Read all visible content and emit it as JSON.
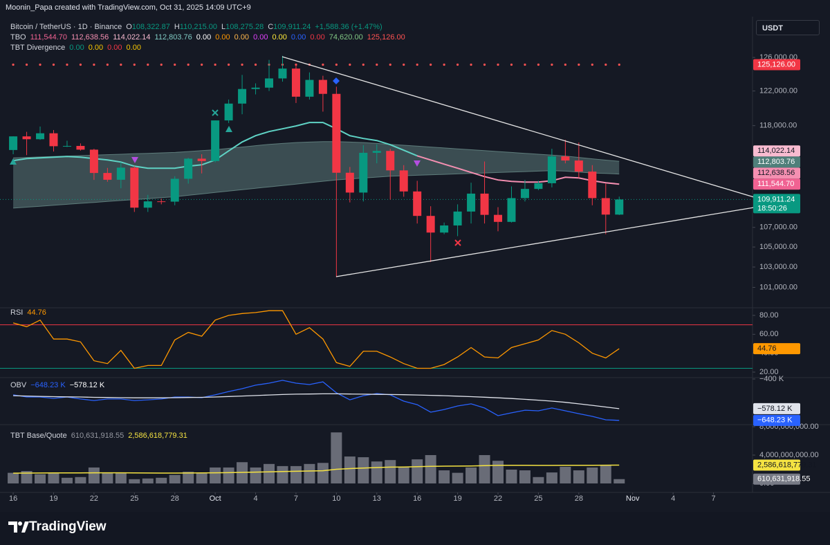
{
  "header": {
    "credit": "Moonin_Papa created with TradingView.com, Oct 31, 2025 14:09 UTC+9",
    "currency": "USDT",
    "logo": "TradingView"
  },
  "chart_data": [
    {
      "type": "candlestick",
      "title": "Bitcoin / TetherUS · 1D · Binance",
      "ohlc_legend": [
        {
          "key": "O",
          "label": "108,322.87"
        },
        {
          "key": "H",
          "label": "110,215.00"
        },
        {
          "key": "L",
          "label": "108,275.28"
        },
        {
          "key": "C",
          "label": "109,911.24"
        }
      ],
      "change": "+1,588.36 (+1.47%)",
      "countdown": "18:50:26",
      "open": [
        115268,
        116788,
        116468,
        117137,
        115688,
        115721,
        115306,
        112748,
        112014,
        113328,
        109049,
        109712,
        109681,
        112122,
        114311,
        114048,
        118594,
        120529,
        122232,
        122391,
        123482,
        124658,
        121332,
        123306,
        121662,
        112774,
        110644,
        114958,
        115166,
        113029,
        110763,
        108187,
        106468,
        107198,
        108642,
        110532,
        108297,
        107568,
        110055,
        111033,
        111641,
        114559,
        114107,
        112898,
        110055,
        108322.87
      ],
      "high": [
        116800,
        117300,
        117900,
        117500,
        116300,
        116000,
        115400,
        113300,
        113900,
        113500,
        110400,
        110000,
        112400,
        114400,
        114800,
        118600,
        121000,
        123900,
        122900,
        125700,
        126200,
        125100,
        124200,
        123800,
        122500,
        113400,
        115800,
        115900,
        115400,
        113600,
        111900,
        109200,
        107500,
        109400,
        111700,
        114000,
        109100,
        111300,
        112000,
        111900,
        115400,
        116400,
        116100,
        113600,
        111600,
        110215
      ],
      "low": [
        114800,
        114700,
        116400,
        115100,
        115600,
        115200,
        112000,
        111800,
        111100,
        108600,
        108600,
        109400,
        109300,
        111600,
        112700,
        113900,
        118300,
        119300,
        121600,
        122000,
        123100,
        120600,
        121000,
        119600,
        102000,
        109600,
        109700,
        113800,
        109900,
        110200,
        107400,
        103500,
        106300,
        106100,
        107400,
        107400,
        106600,
        107500,
        109700,
        110900,
        111200,
        113800,
        112200,
        109300,
        106300,
        108275.28
      ],
      "close": [
        116788,
        116468,
        117137,
        115688,
        115721,
        115306,
        112748,
        112014,
        113328,
        109049,
        109712,
        109681,
        112122,
        114311,
        114048,
        118594,
        120529,
        122232,
        122391,
        123482,
        124658,
        121332,
        123306,
        121662,
        112774,
        110644,
        114958,
        115166,
        113029,
        110763,
        108187,
        106468,
        107198,
        108642,
        110532,
        108297,
        107568,
        110055,
        111033,
        111641,
        114559,
        114107,
        112898,
        110055,
        108322.87,
        109911.24
      ],
      "up_color": "#089981",
      "down_color": "#f23645",
      "log_scale": true,
      "ylim": [
        99170,
        130700
      ],
      "yticks": [
        {
          "value": 126000,
          "label": "126,000.00"
        },
        {
          "value": 122000,
          "label": "122,000.00"
        },
        {
          "value": 118000,
          "label": "118,000.00"
        },
        {
          "value": 107000,
          "label": "107,000.00"
        },
        {
          "value": 105000,
          "label": "105,000.00"
        },
        {
          "value": 103000,
          "label": "103,000.00"
        },
        {
          "value": 101000,
          "label": "101,000.00"
        }
      ],
      "xlim": [
        -0.98,
        54.9
      ],
      "xticks": [
        {
          "value": 0,
          "label": "16"
        },
        {
          "value": 3,
          "label": "19"
        },
        {
          "value": 6,
          "label": "22"
        },
        {
          "value": 9,
          "label": "25"
        },
        {
          "value": 12,
          "label": "28"
        },
        {
          "value": 15,
          "label": "Oct"
        },
        {
          "value": 18,
          "label": "4"
        },
        {
          "value": 21,
          "label": "7"
        },
        {
          "value": 24,
          "label": "10"
        },
        {
          "value": 27,
          "label": "13"
        },
        {
          "value": 30,
          "label": "16"
        },
        {
          "value": 33,
          "label": "19"
        },
        {
          "value": 36,
          "label": "22"
        },
        {
          "value": 39,
          "label": "25"
        },
        {
          "value": 42,
          "label": "28"
        },
        {
          "value": 46,
          "label": "Nov"
        },
        {
          "value": 49,
          "label": "4"
        },
        {
          "value": 52,
          "label": "7"
        }
      ],
      "indicators": [
        {
          "name": "TBO",
          "items": [
            {
              "value": 111544.7,
              "label": "111,544.70",
              "color": "#f06292",
              "axis_bg": "#f06292",
              "axis_fg": "#ffffff"
            },
            {
              "value": 112638.56,
              "label": "112,638.56",
              "color": "#f48fb1",
              "axis_bg": "#f48fb1",
              "axis_fg": "#131722"
            },
            {
              "value": 114022.14,
              "label": "114,022.14",
              "color": "#f8bbd0",
              "axis_bg": "#f8bbd0",
              "axis_fg": "#131722"
            },
            {
              "value": 112803.76,
              "label": "112,803.76",
              "color": "#80cbc4",
              "axis_bg": "#4f7f7a",
              "axis_fg": "#ffffff"
            },
            {
              "value": 0,
              "label": "0.00",
              "color": "#ffffff"
            },
            {
              "value": 0,
              "label": "0.00",
              "color": "#ff9800"
            },
            {
              "value": 0,
              "label": "0.00",
              "color": "#ffb74d"
            },
            {
              "value": 0,
              "label": "0.00",
              "color": "#e040fb"
            },
            {
              "value": 0,
              "label": "0.00",
              "color": "#ffeb3b"
            },
            {
              "value": 0,
              "label": "0.00",
              "color": "#2962ff"
            },
            {
              "value": 0,
              "label": "0.00",
              "color": "#f23645"
            },
            {
              "value": 74620.0,
              "label": "74,620.00",
              "color": "#81c784"
            },
            {
              "value": 125126.0,
              "label": "125,126.00",
              "color": "#ff5252",
              "axis_bg": "#f23645",
              "axis_fg": "#ffffff",
              "dotted": true
            }
          ],
          "fast": [
            114092,
            114320,
            114396,
            114472,
            114548,
            114472,
            114320,
            114168,
            113940,
            113489,
            113264,
            113264,
            113264,
            113489,
            113639,
            114168,
            115165,
            116162,
            116864,
            117332,
            117647,
            117962,
            118357,
            118357,
            117647,
            116864,
            116550,
            116320,
            115860,
            115240,
            114624,
            114168,
            113714,
            113264,
            112810,
            112360,
            111990,
            111840,
            111765,
            111765,
            111915,
            112285,
            112210,
            111915,
            111690,
            111544.7
          ],
          "fast_colors": [
            "#5fd3c5",
            "#f48fb1"
          ],
          "color_switch": 30,
          "band_upper": [
            114400,
            114450,
            114500,
            114550,
            114600,
            114650,
            114700,
            114750,
            114800,
            114850,
            114900,
            114950,
            115000,
            115100,
            115200,
            115300,
            115450,
            115600,
            115750,
            115900,
            116000,
            116100,
            116150,
            116200,
            116200,
            116150,
            116100,
            116000,
            115900,
            115800,
            115700,
            115600,
            115500,
            115400,
            115300,
            115200,
            115100,
            115000,
            114900,
            114800,
            114700,
            114600,
            114450,
            114300,
            114150,
            114022.14
          ],
          "band_lower": [
            109000,
            109100,
            109200,
            109300,
            109400,
            109500,
            109600,
            109700,
            109800,
            109900,
            110000,
            110100,
            110200,
            110350,
            110500,
            110650,
            110800,
            110950,
            111100,
            111250,
            111400,
            111550,
            111700,
            111850,
            112000,
            112100,
            112200,
            112300,
            112400,
            112450,
            112500,
            112550,
            112600,
            112650,
            112700,
            112750,
            112800,
            112850,
            112900,
            112950,
            113000,
            112950,
            112850,
            112750,
            112700,
            112638.56
          ],
          "cloud_color": "#6b8f8b"
        },
        {
          "name": "TBT Divergence",
          "items": [
            {
              "value": 0,
              "label": "0.00",
              "color": "#089981"
            },
            {
              "value": 0,
              "label": "0.00",
              "color": "#f7c600"
            },
            {
              "value": 0,
              "label": "0.00",
              "color": "#f23645"
            },
            {
              "value": 0,
              "label": "0.00",
              "color": "#f7c600"
            }
          ]
        }
      ]
    },
    {
      "type": "line",
      "name": "RSI",
      "color": "#ff9800",
      "values": [
        72,
        68,
        75,
        55,
        55,
        52,
        32,
        29,
        43,
        24,
        27,
        27,
        54,
        62,
        58,
        75,
        80,
        82,
        83,
        85,
        85,
        60,
        67,
        55,
        30,
        26,
        42,
        42,
        36,
        29,
        24,
        24,
        28,
        36,
        46,
        36,
        35,
        46,
        50,
        54,
        64,
        60,
        51,
        40,
        35,
        44.76
      ],
      "levels": [
        {
          "value": 70,
          "color": "#f23645"
        },
        {
          "value": 24,
          "color": "#089981"
        }
      ],
      "ylim": [
        14.88,
        86.59
      ],
      "yticks": [
        {
          "value": 20,
          "label": "20.00"
        },
        {
          "value": 40,
          "label": "40.00"
        },
        {
          "value": 60,
          "label": "60.00"
        },
        {
          "value": 80,
          "label": "80.00"
        }
      ]
    },
    {
      "type": "line",
      "name": "OBV",
      "series": [
        {
          "color": "#2962ff",
          "axis_fg": "#ffffff",
          "values": [
            -495,
            -508,
            -508,
            -516,
            -508,
            -520,
            -529,
            -520,
            -520,
            -529,
            -525,
            -520,
            -508,
            -508,
            -512,
            -495,
            -475,
            -458,
            -437,
            -425,
            -408,
            -425,
            -433,
            -417,
            -483,
            -525,
            -500,
            -487,
            -495,
            -533,
            -554,
            -599,
            -583,
            -562,
            -549,
            -574,
            -620,
            -603,
            -587,
            -591,
            -574,
            -591,
            -608,
            -624,
            -645,
            -648.23
          ],
          "value_labels": {
            "45": "−648.23 K"
          }
        },
        {
          "color": "#e0e3eb",
          "axis_fg": "#131722",
          "values": [
            -500,
            -502,
            -504,
            -506,
            -507,
            -508,
            -510,
            -511,
            -512,
            -513,
            -513,
            -513,
            -512,
            -511,
            -510,
            -508,
            -505,
            -502,
            -499,
            -496,
            -493,
            -491,
            -490,
            -489,
            -489,
            -490,
            -491,
            -492,
            -493,
            -494,
            -496,
            -498,
            -500,
            -503,
            -506,
            -509,
            -513,
            -517,
            -522,
            -527,
            -533,
            -540,
            -549,
            -558,
            -568,
            -578.12
          ],
          "value_labels": {
            "45": "−578.12 K"
          }
        }
      ],
      "ylim": [
        -669.75,
        -400
      ],
      "yticks": [
        {
          "value": -400,
          "label": "−400 K"
        }
      ]
    },
    {
      "type": "bar",
      "name": "TBT Base/Quote",
      "series": [
        {
          "color": "#787b86",
          "axis_fg": "#ffffff",
          "values": [
            1500000000,
            1750000000,
            1300000000,
            1500000000,
            800000000,
            900000000,
            2250000000,
            1500000000,
            1500000000,
            600000000,
            700000000,
            800000000,
            1200000000,
            1650000000,
            1550000000,
            2250000000,
            2250000000,
            3000000000,
            2250000000,
            2750000000,
            2450000000,
            2450000000,
            2750000000,
            2900000000,
            7200000000,
            3800000000,
            3700000000,
            3100000000,
            3300000000,
            2350000000,
            3400000000,
            4000000000,
            1850000000,
            1500000000,
            2250000000,
            4000000000,
            3200000000,
            1950000000,
            1850000000,
            900000000,
            1550000000,
            2350000000,
            1850000000,
            2250000000,
            2550000000,
            610631918.55
          ],
          "value_labels": {
            "45": "610,631,918.55"
          }
        },
        {
          "color": "#f5e342",
          "axis_fg": "#131722",
          "line": true,
          "values": [
            1450000000,
            1460000000,
            1470000000,
            1480000000,
            1480000000,
            1480000000,
            1500000000,
            1500000000,
            1500000000,
            1480000000,
            1470000000,
            1460000000,
            1460000000,
            1470000000,
            1480000000,
            1500000000,
            1520000000,
            1560000000,
            1600000000,
            1640000000,
            1680000000,
            1720000000,
            1760000000,
            1800000000,
            2000000000,
            2100000000,
            2180000000,
            2240000000,
            2300000000,
            2320000000,
            2360000000,
            2420000000,
            2440000000,
            2450000000,
            2470000000,
            2520000000,
            2560000000,
            2570000000,
            2570000000,
            2550000000,
            2550000000,
            2560000000,
            2560000000,
            2570000000,
            2580000000,
            2586618779.31
          ],
          "value_labels": {
            "45": "2,586,618,779.31"
          }
        }
      ],
      "ylim": [
        -1268000000,
        8098000000
      ],
      "yticks": [
        {
          "value": 0,
          "label": "0.00"
        },
        {
          "value": 4000000000,
          "label": "4,000,000,000.00"
        },
        {
          "value": 8000000000,
          "label": "8,000,000,000.00"
        }
      ]
    }
  ]
}
